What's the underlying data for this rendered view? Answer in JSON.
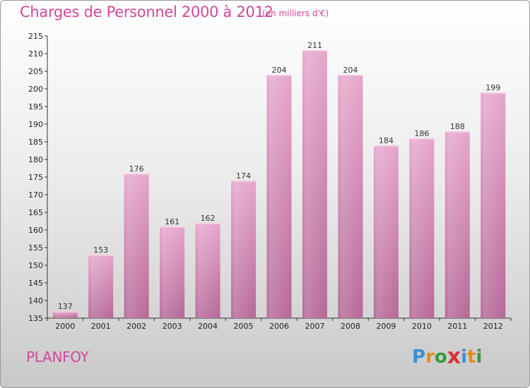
{
  "header": {
    "title": "Charges de Personnel 2000 à 2012",
    "unit": "(en milliers d'€)"
  },
  "footer": {
    "place": "PLANFOY",
    "logo": {
      "letters": [
        "P",
        "r",
        "o",
        "x",
        "i",
        "t",
        "i"
      ],
      "colors": [
        "#3a8fd9",
        "#e8891c",
        "#2f9c3c",
        "#d8313a",
        "#3a8fd9",
        "#e8891c",
        "#2f9c3c"
      ]
    }
  },
  "colors": {
    "bar": "#d98dbb",
    "bar_light": "#e8a9cf",
    "bar_dark": "#b8679a",
    "text_accent": "#d0479a"
  },
  "chart_data": {
    "type": "bar",
    "title": "Charges de Personnel 2000 à 2012",
    "unit": "(en milliers d'€)",
    "categories": [
      "2000",
      "2001",
      "2002",
      "2003",
      "2004",
      "2005",
      "2006",
      "2007",
      "2008",
      "2009",
      "2010",
      "2011",
      "2012"
    ],
    "values": [
      137,
      153,
      176,
      161,
      162,
      174,
      204,
      211,
      204,
      184,
      186,
      188,
      199
    ],
    "ylim": [
      135,
      215
    ],
    "yticks": [
      135,
      140,
      145,
      150,
      155,
      160,
      165,
      170,
      175,
      180,
      185,
      190,
      195,
      200,
      205,
      210,
      215
    ],
    "grid": false,
    "legend": "none"
  }
}
